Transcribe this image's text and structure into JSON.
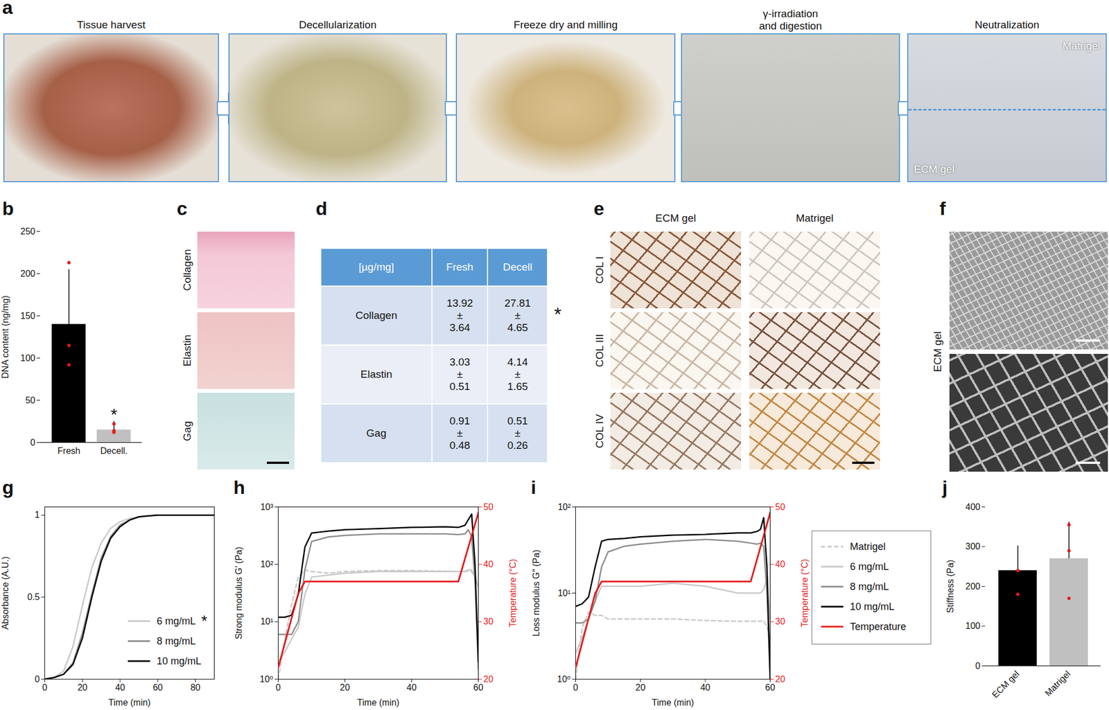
{
  "chart_data": [
    {
      "label": "b",
      "type": "bar",
      "categories": [
        "Fresh",
        "Decell."
      ],
      "values": [
        140,
        15
      ],
      "errors": [
        65,
        10
      ],
      "points": [
        [
          213,
          115,
          92
        ],
        [
          22,
          14,
          12
        ]
      ],
      "colors": [
        "#000000",
        "#c0c0c0"
      ],
      "ylabel": "DNA content (ng/mg)",
      "ylim": [
        0,
        250
      ],
      "yticks": [
        0,
        50,
        100,
        150,
        200,
        250
      ],
      "annotations": [
        {
          "text": "*",
          "category": "Decell."
        }
      ]
    },
    {
      "label": "g",
      "type": "line",
      "xlabel": "Time (min)",
      "ylabel": "Absorbance (A.U.)",
      "x": [
        0,
        5,
        10,
        15,
        20,
        25,
        30,
        35,
        40,
        45,
        50,
        60,
        70,
        80,
        90
      ],
      "xlim": [
        0,
        90
      ],
      "xticks": [
        0,
        20,
        40,
        60,
        80
      ],
      "ylim": [
        0,
        1.05
      ],
      "yticks": [
        0,
        0.5,
        1
      ],
      "legend": "lower right",
      "series": [
        {
          "name": "6 mg/mL",
          "color": "#c8c8c8",
          "values": [
            0,
            0.01,
            0.05,
            0.2,
            0.45,
            0.68,
            0.83,
            0.92,
            0.96,
            0.98,
            0.99,
            1,
            1,
            1,
            1
          ]
        },
        {
          "name": "8 mg/mL",
          "color": "#8c8c8c",
          "values": [
            0,
            0.01,
            0.03,
            0.1,
            0.28,
            0.52,
            0.74,
            0.87,
            0.94,
            0.97,
            0.99,
            1,
            1,
            1,
            1
          ]
        },
        {
          "name": "10 mg/mL",
          "color": "#000000",
          "values": [
            0,
            0.01,
            0.03,
            0.09,
            0.25,
            0.5,
            0.72,
            0.86,
            0.93,
            0.97,
            0.99,
            1,
            1,
            1,
            1
          ]
        }
      ],
      "annotations": [
        {
          "text": "*",
          "series": "6 mg/mL"
        }
      ]
    },
    {
      "label": "h",
      "type": "line",
      "xlabel": "Time (min)",
      "ylabel": "Strong modulus G′ (Pa)",
      "y2label": "Temperature (°C)",
      "log": "y",
      "x": [
        0,
        2,
        4,
        6,
        8,
        10,
        15,
        20,
        30,
        40,
        50,
        54,
        56,
        57,
        58,
        59,
        60
      ],
      "xlim": [
        0,
        60
      ],
      "xticks": [
        0,
        20,
        40,
        60
      ],
      "ylim": [
        1,
        1000
      ],
      "yticks": [
        {
          "value": 1,
          "label": "10⁰"
        },
        {
          "value": 10,
          "label": "10¹"
        },
        {
          "value": 100,
          "label": "10²"
        },
        {
          "value": 1000,
          "label": "10³"
        }
      ],
      "y2lim": [
        20,
        50
      ],
      "y2ticks": [
        20,
        30,
        40,
        50
      ],
      "series": [
        {
          "name": "Matrigel",
          "color": "#c8c8c8",
          "line_style": "dashed",
          "values": [
            1,
            5,
            20,
            60,
            80,
            75,
            70,
            75,
            78,
            78,
            76,
            75,
            75,
            76,
            75,
            60,
            40
          ]
        },
        {
          "name": "6 mg/mL",
          "color": "#c8c8c8",
          "values": [
            2,
            3,
            5,
            8,
            30,
            60,
            65,
            70,
            75,
            75,
            75,
            75,
            75,
            80,
            80,
            60,
            40
          ]
        },
        {
          "name": "8 mg/mL",
          "color": "#8c8c8c",
          "values": [
            6,
            6,
            6,
            10,
            80,
            250,
            300,
            320,
            340,
            340,
            340,
            330,
            340,
            400,
            300,
            50,
            1.5
          ]
        },
        {
          "name": "10 mg/mL",
          "color": "#000000",
          "values": [
            12,
            12,
            13,
            30,
            200,
            350,
            380,
            400,
            420,
            440,
            450,
            440,
            480,
            600,
            750,
            100,
            2
          ]
        },
        {
          "name": "Temperature",
          "color": "#e41a1c",
          "axis": "y2",
          "values": [
            22,
            26.3,
            30.6,
            34.9,
            37,
            37,
            37,
            37,
            37,
            37,
            37,
            37,
            41,
            43,
            45,
            47,
            49
          ]
        }
      ]
    },
    {
      "label": "i",
      "type": "line",
      "xlabel": "Time (min)",
      "ylabel": "Loss modulus G″ (Pa)",
      "y2label": "Temperature (°C)",
      "log": "y",
      "x": [
        0,
        2,
        4,
        6,
        8,
        10,
        15,
        20,
        30,
        40,
        50,
        54,
        56,
        57,
        58,
        59,
        60
      ],
      "xlim": [
        0,
        60
      ],
      "xticks": [
        0,
        20,
        40,
        60
      ],
      "ylim": [
        1,
        100
      ],
      "yticks": [
        {
          "value": 1,
          "label": "10⁰"
        },
        {
          "value": 10,
          "label": "10¹"
        },
        {
          "value": 100,
          "label": "10²"
        }
      ],
      "y2lim": [
        20,
        50
      ],
      "y2ticks": [
        20,
        30,
        40,
        50
      ],
      "legend": "right",
      "series": [
        {
          "name": "Matrigel",
          "color": "#c8c8c8",
          "line_style": "dashed",
          "values": [
            1,
            4,
            6,
            5.5,
            5.5,
            5,
            5,
            5,
            5,
            4.8,
            4.7,
            4.7,
            4.7,
            4.7,
            4.8,
            4,
            3
          ]
        },
        {
          "name": "6 mg/mL",
          "color": "#c8c8c8",
          "values": [
            2,
            3,
            5,
            8,
            12,
            12,
            12,
            12,
            13,
            12,
            10,
            10,
            10,
            10,
            11,
            15,
            5
          ]
        },
        {
          "name": "8 mg/mL",
          "color": "#8c8c8c",
          "values": [
            4.5,
            4.5,
            5,
            8,
            20,
            30,
            35,
            37,
            40,
            42,
            40,
            38,
            37,
            38,
            35,
            10,
            1
          ]
        },
        {
          "name": "10 mg/mL",
          "color": "#000000",
          "values": [
            7,
            7.5,
            9,
            20,
            40,
            42,
            43,
            45,
            47,
            48,
            50,
            50,
            52,
            55,
            75,
            20,
            1
          ]
        },
        {
          "name": "Temperature",
          "color": "#e41a1c",
          "axis": "y2",
          "values": [
            22,
            26.3,
            30.6,
            34.9,
            37,
            37,
            37,
            37,
            37,
            37,
            37,
            37,
            41,
            43,
            45,
            47,
            49
          ]
        }
      ]
    },
    {
      "label": "j",
      "type": "bar",
      "categories": [
        "ECM gel",
        "Matrigel"
      ],
      "values": [
        240,
        270
      ],
      "errors": [
        62,
        92
      ],
      "points": [
        [
          240,
          180
        ],
        [
          355,
          290,
          170
        ]
      ],
      "colors": [
        "#000000",
        "#c0c0c0"
      ],
      "ylabel": "Stiffness (Pa)",
      "ylim": [
        0,
        400
      ],
      "yticks": [
        0,
        100,
        200,
        300,
        400
      ]
    }
  ],
  "panel_a": {
    "label": "a",
    "steps": [
      {
        "title": [
          "Tissue harvest"
        ]
      },
      {
        "title": [
          "Decellularization"
        ]
      },
      {
        "title": [
          "Freeze dry and milling"
        ]
      },
      {
        "title": [
          "γ-irradiation",
          "and digestion"
        ]
      },
      {
        "title": [
          "Neutralization"
        ],
        "texts": [
          "Matrigel",
          "ECM gel"
        ]
      }
    ]
  },
  "panel_c": {
    "label": "c",
    "rows": [
      "Collagen",
      "Elastin",
      "Gag"
    ]
  },
  "panel_d": {
    "label": "d",
    "header": [
      "[µg/mg]",
      "Fresh",
      "Decell"
    ],
    "rows": [
      [
        "Collagen",
        "13.92 ± 3.64",
        "27.81 ± 4.65"
      ],
      [
        "Elastin",
        "3.03 ± 0.51",
        "4.14 ± 1.65"
      ],
      [
        "Gag",
        "0.91 ± 0.48",
        "0.51 ± 0.26"
      ]
    ],
    "annotation": {
      "text": "*",
      "row": 0
    }
  },
  "panel_e": {
    "label": "e",
    "columns": [
      "ECM gel",
      "Matrigel"
    ],
    "rows": [
      "COL I",
      "COL III",
      "COL IV"
    ]
  },
  "panel_f": {
    "label": "f",
    "text": "ECM gel"
  }
}
